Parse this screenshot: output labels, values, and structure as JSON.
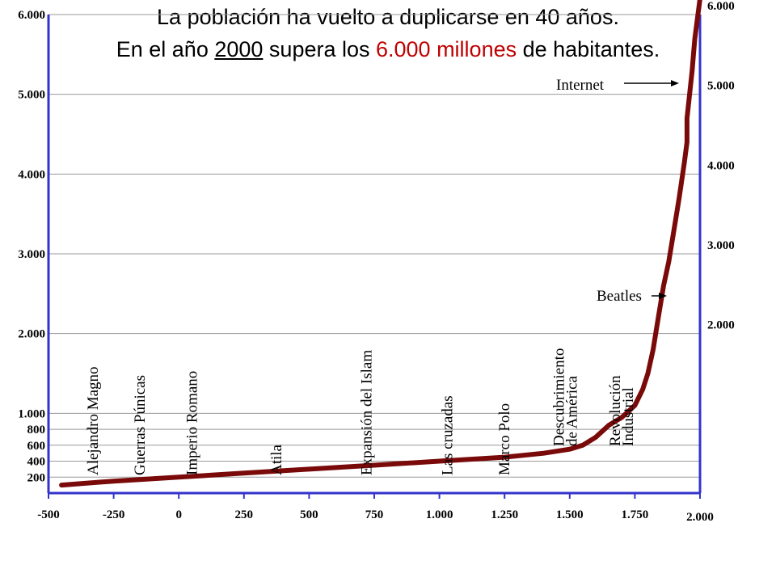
{
  "title": {
    "line1": "La población  ha vuelto a duplicarse en 40 años.",
    "line2_a": "En el año ",
    "line2_year": "2000",
    "line2_b": " supera los ",
    "line2_red": "6.000 millones",
    "line2_c": " de habitantes."
  },
  "colors": {
    "curve": "#7a0a0a",
    "axis": "#3333cc",
    "grid": "#999999",
    "highlight": "#c00000"
  },
  "chart_data": {
    "type": "line",
    "title": "La población  ha vuelto a duplicarse en 40 años. En el año 2000 supera los 6.000 millones de habitantes.",
    "xlabel": "",
    "ylabel": "",
    "xlim": [
      -500,
      2000
    ],
    "ylim": [
      0,
      6000
    ],
    "grid": true,
    "x_ticks": [
      {
        "value": -500,
        "label": "-500"
      },
      {
        "value": -250,
        "label": "-250"
      },
      {
        "value": 0,
        "label": "0"
      },
      {
        "value": 250,
        "label": "250"
      },
      {
        "value": 500,
        "label": "500"
      },
      {
        "value": 750,
        "label": "750"
      },
      {
        "value": 1000,
        "label": "1.000"
      },
      {
        "value": 1250,
        "label": "1.250"
      },
      {
        "value": 1500,
        "label": "1.500"
      },
      {
        "value": 1750,
        "label": "1.750"
      },
      {
        "value": 2000,
        "label": "2.000"
      }
    ],
    "y_ticks_left": [
      {
        "value": 200,
        "label": "200"
      },
      {
        "value": 400,
        "label": "400"
      },
      {
        "value": 600,
        "label": "600"
      },
      {
        "value": 800,
        "label": "800"
      },
      {
        "value": 1000,
        "label": "1.000"
      },
      {
        "value": 2000,
        "label": "2.000"
      },
      {
        "value": 3000,
        "label": "3.000"
      },
      {
        "value": 4000,
        "label": "4.000"
      },
      {
        "value": 5000,
        "label": "5.000"
      },
      {
        "value": 6000,
        "label": "6.000"
      }
    ],
    "y_ticks_right": [
      {
        "value": 2000,
        "label": "2.000"
      },
      {
        "value": 3000,
        "label": "3.000"
      },
      {
        "value": 4000,
        "label": "4.000"
      },
      {
        "value": 5000,
        "label": "5.000"
      },
      {
        "value": 6000,
        "label": "6.000"
      }
    ],
    "series": [
      {
        "x": [
          -450,
          -250,
          0,
          250,
          500,
          750,
          1000,
          1250,
          1400,
          1500,
          1550,
          1600,
          1650,
          1700,
          1750,
          1780,
          1800,
          1820,
          1840,
          1860,
          1880,
          1900,
          1920,
          1940,
          1950,
          1950,
          1960,
          1970,
          1975,
          1980,
          1990,
          2000
        ],
        "y": [
          100,
          150,
          200,
          250,
          300,
          350,
          400,
          450,
          500,
          550,
          600,
          700,
          850,
          950,
          1100,
          1300,
          1500,
          1800,
          2200,
          2600,
          2900,
          3300,
          3700,
          4150,
          4400,
          4700,
          5000,
          5300,
          5500,
          5700,
          5950,
          6200
        ]
      }
    ],
    "annotations": [
      {
        "label": "Alejandro Magno",
        "x": -330
      },
      {
        "label": "Guerras Púnicas",
        "x": -150
      },
      {
        "label": "Imperio Romano",
        "x": 50
      },
      {
        "label": "Atila",
        "x": 375
      },
      {
        "label": "Expansión del Islam",
        "x": 720
      },
      {
        "label": "Las cruzadas",
        "x": 1030
      },
      {
        "label": "Marco Polo",
        "x": 1250
      },
      {
        "label": "Descubrimiento de América",
        "line1": "Descubrimiento",
        "line2": "de América",
        "x": 1490
      },
      {
        "label": "Revolución Industrial",
        "line1": "Revolución",
        "line2": "Industrial",
        "x": 1705
      },
      {
        "label": "Beatles",
        "x": 1960,
        "y": 3000
      },
      {
        "label": "Internet",
        "x": 1990,
        "y": 6000
      }
    ]
  }
}
